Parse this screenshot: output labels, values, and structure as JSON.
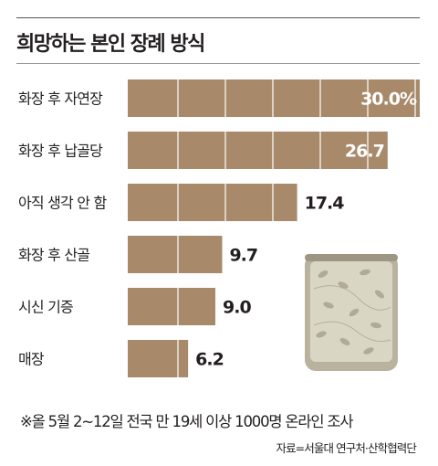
{
  "title": "희망하는 본인 장례 방식",
  "chart_data": {
    "type": "bar",
    "orientation": "horizontal",
    "categories": [
      "화장 후 자연장",
      "화장 후 납골당",
      "아직 생각 안 함",
      "화장 후 산골",
      "시신 기증",
      "매장"
    ],
    "values": [
      30.0,
      26.7,
      17.4,
      9.7,
      9.0,
      6.2
    ],
    "value_labels": [
      "30.0%",
      "26.7",
      "17.4",
      "9.7",
      "9.0",
      "6.2"
    ],
    "unit": "%",
    "xlim": [
      0,
      30.0
    ],
    "bar_color": "#a8896a",
    "label_inside_color": "#ffffff",
    "label_outside_color": "#231f20"
  },
  "note": "※올 5월 2~12일 전국 만 19세 이상 1000명 온라인 조사",
  "source": "자료=서울대 연구처·산학협력단",
  "decoration": {
    "icon": "cremation-urn-icon",
    "colors": [
      "#b9b29f",
      "#d9d7c4",
      "#9d9683"
    ]
  }
}
